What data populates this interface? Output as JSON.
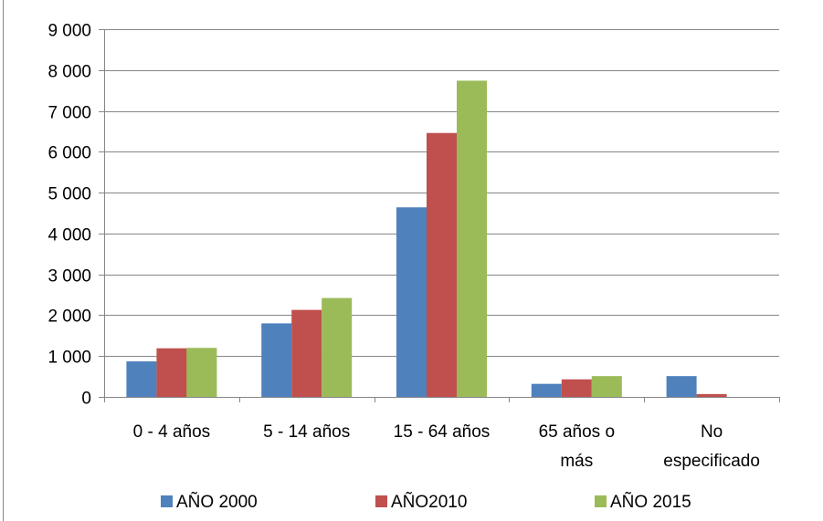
{
  "chart_data": {
    "type": "bar",
    "categories": [
      [
        "0 - 4 años"
      ],
      [
        "5 - 14 años"
      ],
      [
        "15 - 64 años"
      ],
      [
        "65 años o",
        "más"
      ],
      [
        "No",
        "especificado"
      ]
    ],
    "series": [
      {
        "name": "AÑO 2000",
        "color": "#4F81BD",
        "values": [
          870,
          1800,
          4640,
          320,
          510
        ]
      },
      {
        "name": "AÑO2010",
        "color": "#C0504D",
        "values": [
          1190,
          2130,
          6460,
          430,
          70
        ]
      },
      {
        "name": "AÑO 2015",
        "color": "#9BBB59",
        "values": [
          1200,
          2420,
          7740,
          510,
          0
        ]
      }
    ],
    "ylim": [
      0,
      9000
    ],
    "yticks": [
      0,
      1000,
      2000,
      3000,
      4000,
      5000,
      6000,
      7000,
      8000,
      9000
    ],
    "ytick_labels": [
      "0",
      "1 000",
      "2 000",
      "3 000",
      "4 000",
      "5 000",
      "6 000",
      "7 000",
      "8 000",
      "9 000"
    ],
    "grid": true,
    "legend_position": "bottom",
    "title": "",
    "xlabel": "",
    "ylabel": ""
  }
}
